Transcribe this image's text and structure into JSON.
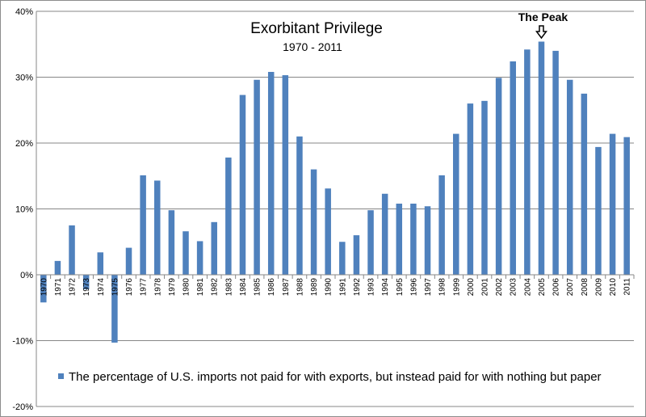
{
  "chart_data": {
    "type": "bar",
    "title": "Exorbitant Privilege",
    "subtitle": "1970 - 2011",
    "xlabel": "",
    "ylabel": "",
    "ylim": [
      -20,
      40
    ],
    "yticks": [
      -20,
      -10,
      0,
      10,
      20,
      30,
      40
    ],
    "ytick_labels": [
      "-20%",
      "-10%",
      "0%",
      "10%",
      "20%",
      "30%",
      "40%"
    ],
    "grid": true,
    "legend_position": "bottom",
    "categories": [
      "1970",
      "1971",
      "1972",
      "1973",
      "1974",
      "1975",
      "1976",
      "1977",
      "1978",
      "1979",
      "1980",
      "1981",
      "1982",
      "1983",
      "1984",
      "1985",
      "1986",
      "1987",
      "1988",
      "1989",
      "1990",
      "1991",
      "1992",
      "1993",
      "1994",
      "1995",
      "1996",
      "1997",
      "1998",
      "1999",
      "2000",
      "2001",
      "2002",
      "2003",
      "2004",
      "2005",
      "2006",
      "2007",
      "2008",
      "2009",
      "2010",
      "2011"
    ],
    "series": [
      {
        "name": "The percentage of U.S. imports not paid for with exports, but instead paid for with nothing but paper",
        "color": "#4f81bd",
        "values": [
          -4.2,
          2.1,
          7.5,
          -2.2,
          3.4,
          -10.3,
          4.1,
          15.1,
          14.3,
          9.8,
          6.6,
          5.1,
          8.0,
          17.8,
          27.3,
          29.6,
          30.8,
          30.3,
          21.0,
          16.0,
          13.1,
          5.0,
          6.0,
          9.8,
          12.3,
          10.8,
          10.8,
          10.4,
          15.1,
          21.4,
          26.0,
          26.4,
          29.9,
          32.4,
          34.2,
          35.4,
          34.0,
          29.6,
          27.5,
          19.4,
          21.4,
          20.9
        ]
      }
    ],
    "annotations": [
      {
        "text": "The Peak",
        "category": "2005",
        "marker": "down-arrow"
      }
    ]
  }
}
